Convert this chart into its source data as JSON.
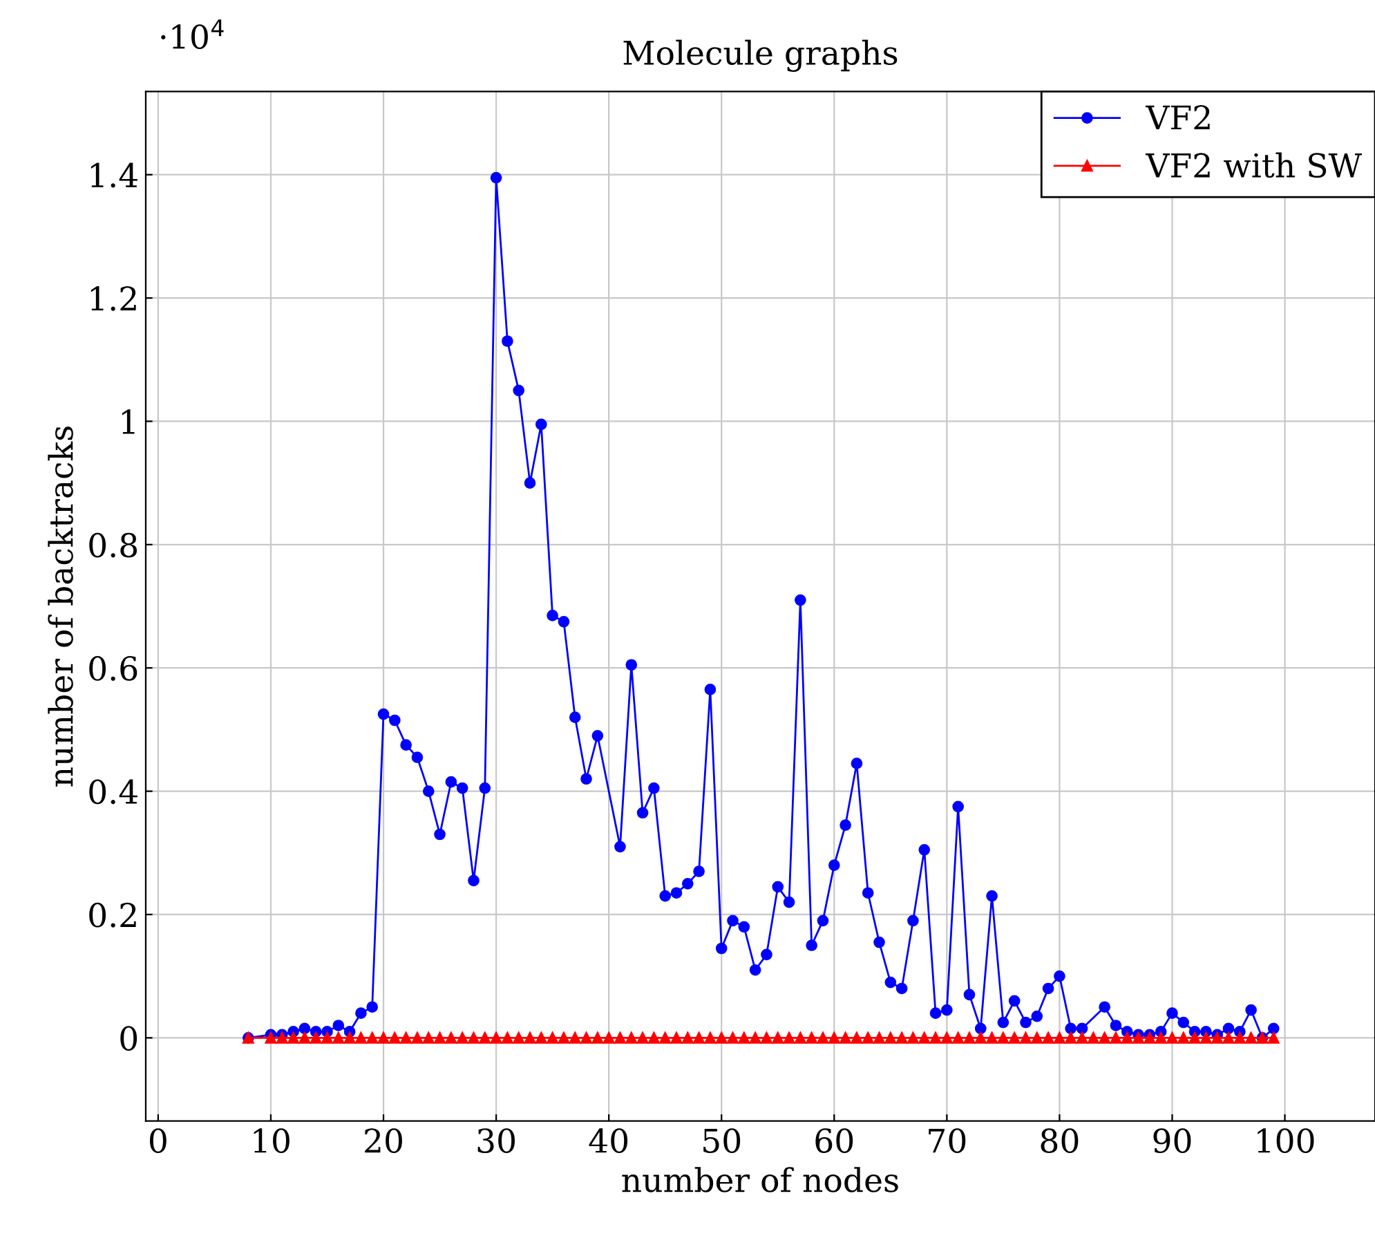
{
  "chart_data": {
    "type": "line",
    "title": "Molecule graphs",
    "xlabel": "number of nodes",
    "ylabel": "number of backtracks",
    "annotations": [
      "·10$^{4}$"
    ],
    "xlim": [
      -1.1,
      108
    ],
    "xticks": [
      0,
      10,
      20,
      30,
      40,
      50,
      60,
      70,
      80,
      90,
      100
    ],
    "ylim": [
      -0.135,
      1.535
    ],
    "yticks": [
      0,
      0.2,
      0.4,
      0.6,
      0.8,
      1,
      1.2,
      1.4
    ],
    "grid": true,
    "legend": "top right",
    "series": [
      {
        "name": "VF2",
        "color": "#0000ff",
        "marker": "circle",
        "x": [
          8,
          10,
          11,
          12,
          13,
          14,
          15,
          16,
          17,
          18,
          19,
          20,
          21,
          22,
          23,
          24,
          25,
          26,
          27,
          28,
          29,
          30,
          31,
          32,
          33,
          34,
          35,
          36,
          37,
          38,
          39,
          41,
          42,
          43,
          44,
          45,
          46,
          47,
          48,
          49,
          50,
          51,
          52,
          53,
          54,
          55,
          56,
          57,
          58,
          59,
          60,
          61,
          62,
          63,
          64,
          65,
          66,
          67,
          68,
          69,
          70,
          71,
          72,
          73,
          74,
          75,
          76,
          77,
          78,
          79,
          80,
          81,
          82,
          84,
          85,
          86,
          87,
          88,
          89,
          90,
          91,
          92,
          93,
          94,
          95,
          96,
          97,
          98,
          99
        ],
        "values": [
          0,
          0.005,
          0.005,
          0.01,
          0.015,
          0.01,
          0.01,
          0.02,
          0.01,
          0.04,
          0.05,
          0.525,
          0.515,
          0.475,
          0.455,
          0.4,
          0.33,
          0.415,
          0.405,
          0.255,
          0.405,
          1.395,
          1.13,
          1.05,
          0.9,
          0.995,
          0.685,
          0.675,
          0.52,
          0.42,
          0.49,
          0.31,
          0.605,
          0.365,
          0.405,
          0.23,
          0.235,
          0.25,
          0.27,
          0.565,
          0.145,
          0.19,
          0.18,
          0.11,
          0.135,
          0.245,
          0.22,
          0.71,
          0.15,
          0.19,
          0.28,
          0.345,
          0.445,
          0.235,
          0.155,
          0.09,
          0.08,
          0.19,
          0.305,
          0.04,
          0.045,
          0.375,
          0.07,
          0.015,
          0.23,
          0.025,
          0.06,
          0.025,
          0.035,
          0.08,
          0.1,
          0.015,
          0.015,
          0.05,
          0.02,
          0.01,
          0.005,
          0.005,
          0.01,
          0.04,
          0.025,
          0.01,
          0.01,
          0.005,
          0.015,
          0.01,
          0.045,
          0,
          0.015
        ]
      },
      {
        "name": "VF2 with SW",
        "color": "#ff0000",
        "marker": "triangle",
        "x": [
          8,
          10,
          11,
          12,
          13,
          14,
          15,
          16,
          17,
          18,
          19,
          20,
          21,
          22,
          23,
          24,
          25,
          26,
          27,
          28,
          29,
          30,
          31,
          32,
          33,
          34,
          35,
          36,
          37,
          38,
          39,
          40,
          41,
          42,
          43,
          44,
          45,
          46,
          47,
          48,
          49,
          50,
          51,
          52,
          53,
          54,
          55,
          56,
          57,
          58,
          59,
          60,
          61,
          62,
          63,
          64,
          65,
          66,
          67,
          68,
          69,
          70,
          71,
          72,
          73,
          74,
          75,
          76,
          77,
          78,
          79,
          80,
          81,
          82,
          83,
          84,
          85,
          86,
          87,
          88,
          89,
          90,
          91,
          92,
          93,
          94,
          95,
          96,
          97,
          98,
          99
        ],
        "values": [
          0,
          0,
          0,
          0,
          0,
          0,
          0,
          0,
          0,
          0,
          0,
          0,
          0,
          0,
          0,
          0,
          0,
          0,
          0,
          0,
          0,
          0,
          0,
          0,
          0,
          0,
          0,
          0,
          0,
          0,
          0,
          0,
          0,
          0,
          0,
          0,
          0,
          0,
          0,
          0,
          0,
          0,
          0,
          0,
          0,
          0,
          0,
          0,
          0,
          0,
          0,
          0,
          0,
          0,
          0,
          0,
          0,
          0,
          0,
          0,
          0,
          0,
          0,
          0,
          0,
          0,
          0,
          0,
          0,
          0,
          0,
          0,
          0,
          0,
          0,
          0,
          0,
          0,
          0,
          0,
          0,
          0,
          0,
          0,
          0,
          0,
          0,
          0,
          0,
          0,
          0
        ]
      }
    ]
  }
}
